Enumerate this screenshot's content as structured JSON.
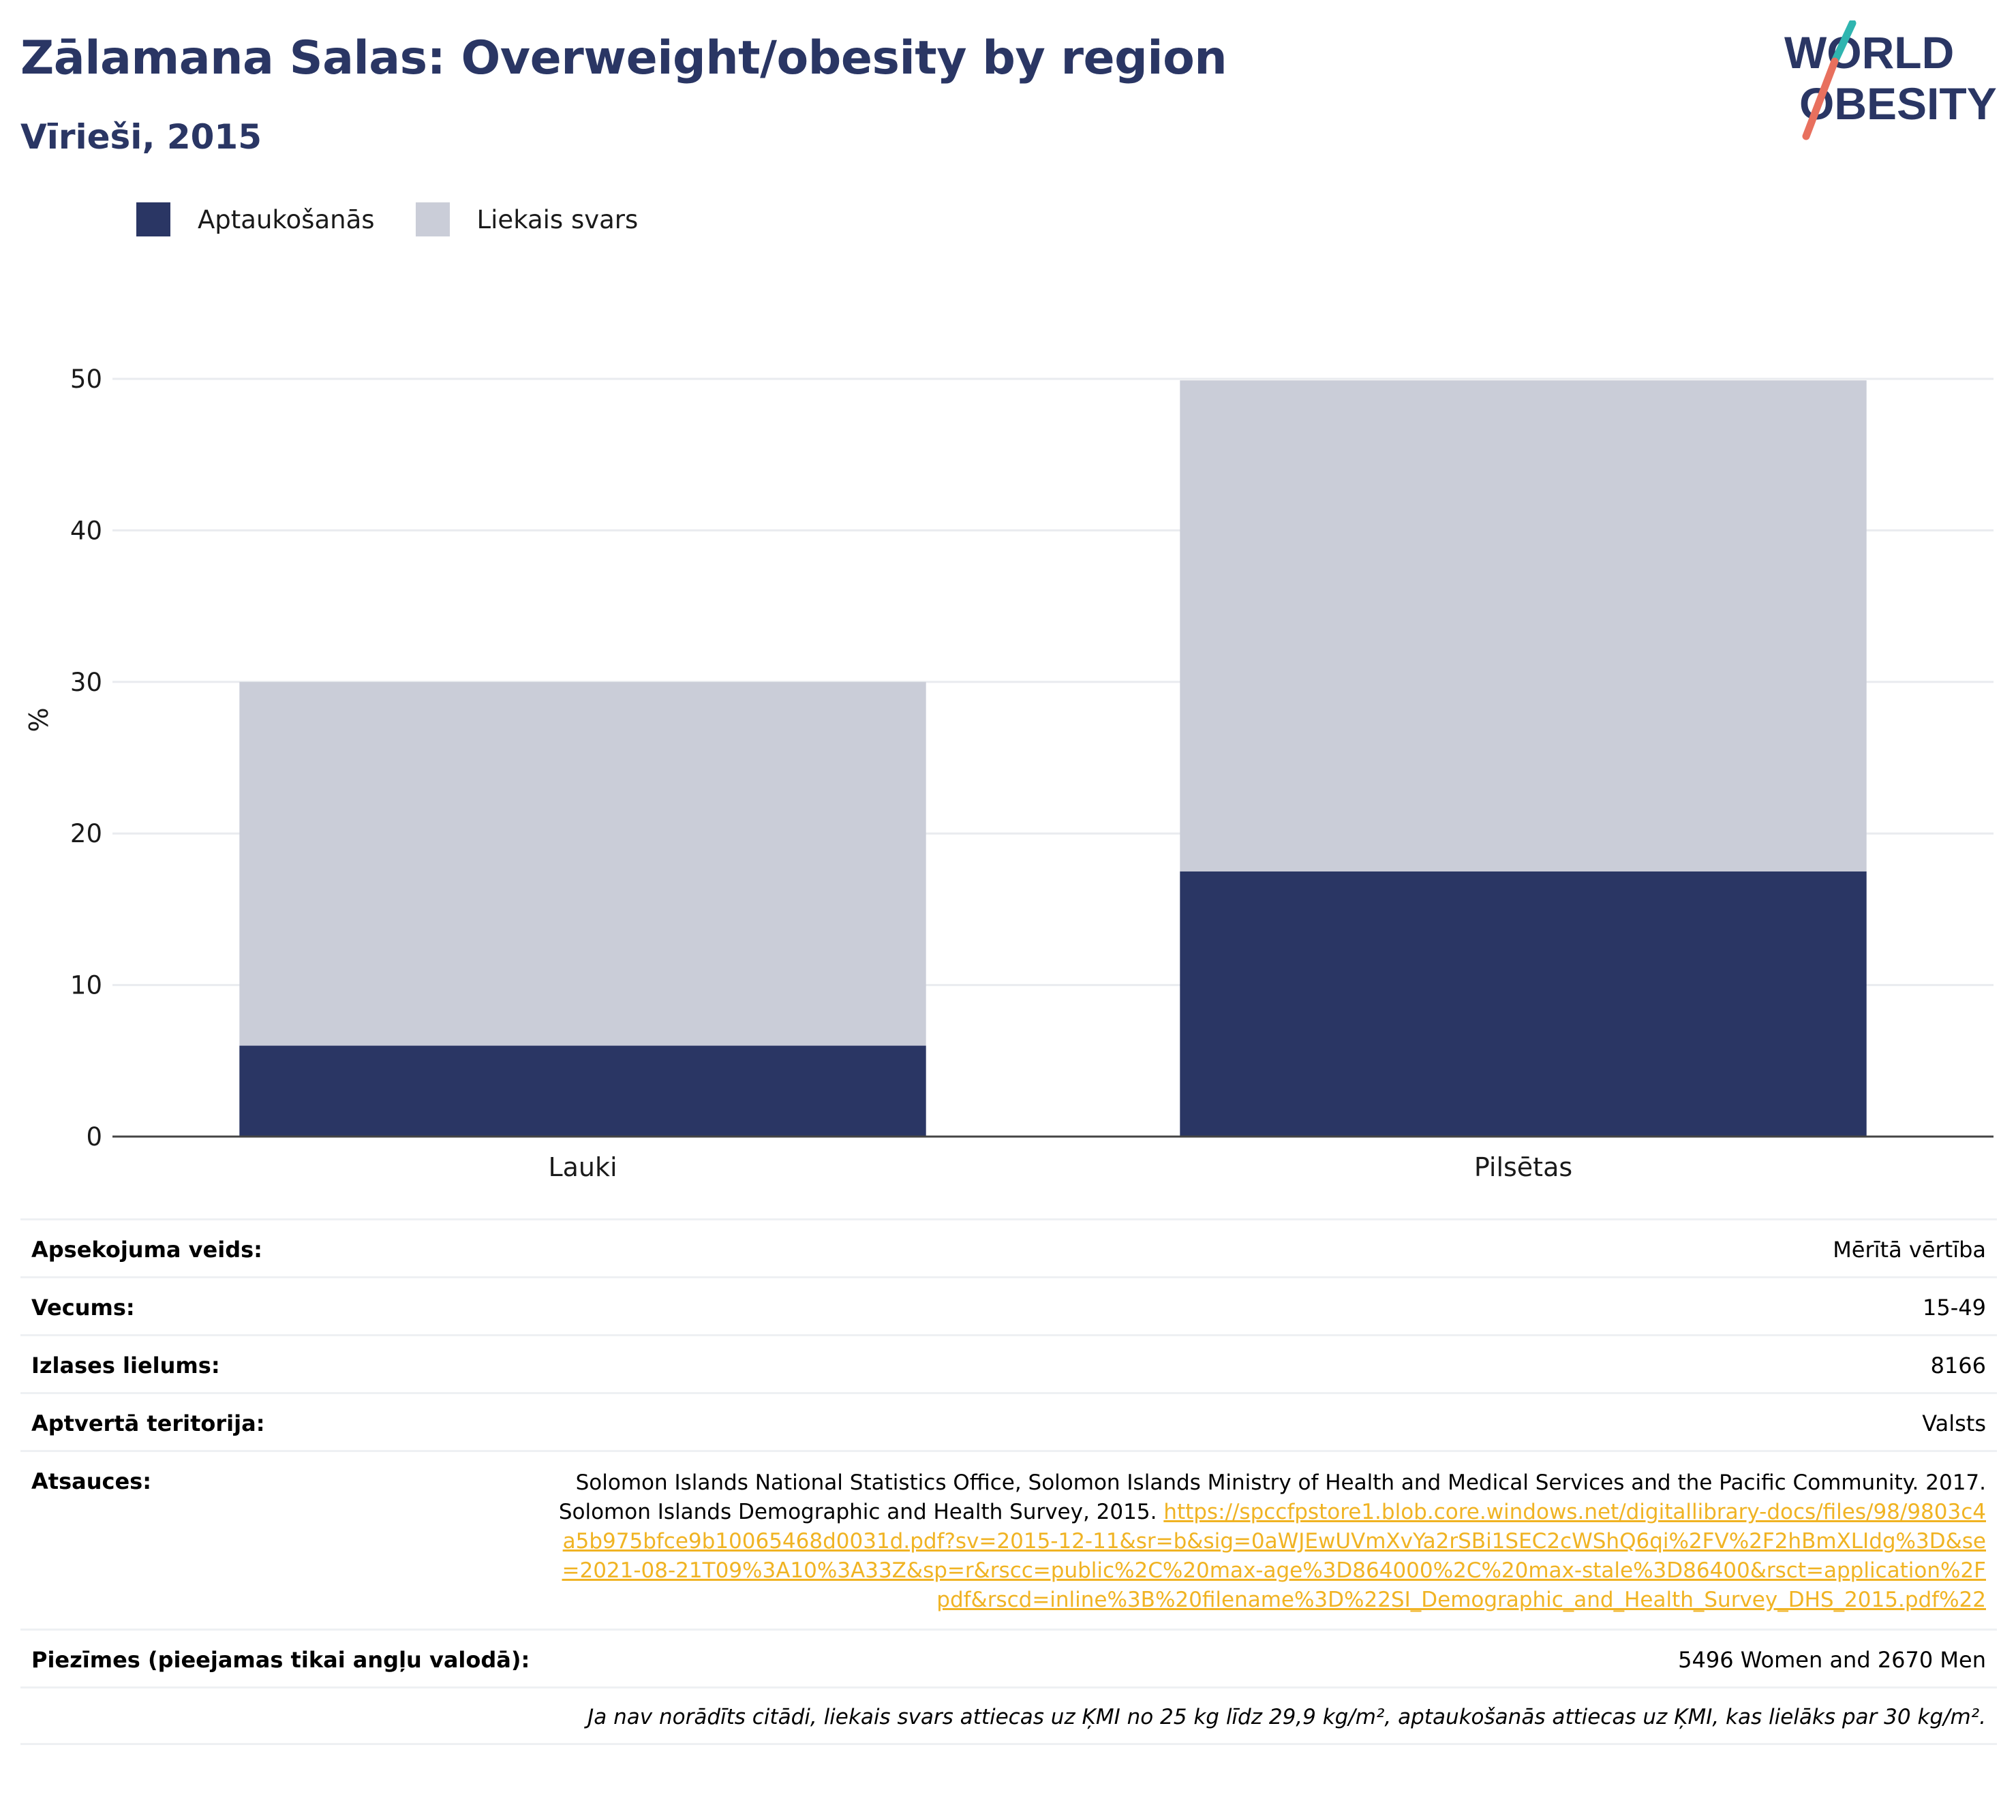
{
  "header": {
    "title": "Zālamana Salas: Overweight/obesity by region",
    "subtitle": "Vīrieši, 2015"
  },
  "logo": {
    "line1": "WORLD",
    "line2": "OBESITY"
  },
  "colors": {
    "obesity": "#2a3664",
    "overweight": "#cacdd8",
    "link": "#f0b323",
    "title": "#2a3664"
  },
  "legend": {
    "items": [
      "Aptaukošanās",
      "Liekais svars"
    ]
  },
  "chart_data": {
    "type": "bar",
    "stacked": true,
    "categories": [
      "Lauki",
      "Pilsētas"
    ],
    "series": [
      {
        "name": "Aptaukošanās",
        "values": [
          6.0,
          17.5
        ]
      },
      {
        "name": "Liekais svars",
        "values": [
          24.0,
          32.4
        ]
      }
    ],
    "ylabel": "%",
    "xlabel": "",
    "ylim": [
      0,
      55
    ],
    "yticks": [
      0,
      10,
      20,
      30,
      40,
      50
    ],
    "grid": true
  },
  "info": {
    "survey_type_label": "Apsekojuma veids:",
    "survey_type_value": "Mērītā vērtība",
    "age_label": "Vecums:",
    "age_value": "15-49",
    "sample_label": "Izlases lielums:",
    "sample_value": "8166",
    "area_label": "Aptvertā teritorija:",
    "area_value": "Valsts",
    "refs_label": "Atsauces:",
    "refs_text": "Solomon Islands National Statistics Office, Solomon Islands Ministry of Health and Medical Services and the Pacific Community. 2017. Solomon Islands Demographic and Health Survey, 2015.",
    "refs_link": "https://spccfpstore1.blob.core.windows.net/digitallibrary-docs/files/98/9803c4a5b975bfce9b10065468d0031d.pdf?sv=2015-12-11&sr=b&sig=0aWJEwUVmXvYa2rSBi1SEC2cWShQ6qi%2FV%2F2hBmXLIdg%3D&se=2021-08-21T09%3A10%3A33Z&sp=r&rscc=public%2C%20max-age%3D864000%2C%20max-stale%3D86400&rsct=application%2Fpdf&rscd=inline%3B%20filename%3D%22SI_Demographic_and_Health_Survey_DHS_2015.pdf%22",
    "notes_label": "Piezīmes (pieejamas tikai angļu valodā):",
    "notes_value": "5496 Women and 2670 Men",
    "footnote": "Ja nav norādīts citādi, liekais svars attiecas uz ĶMI no 25 kg līdz 29,9 kg/m², aptaukošanās attiecas uz ĶMI, kas lielāks par 30 kg/m²."
  }
}
